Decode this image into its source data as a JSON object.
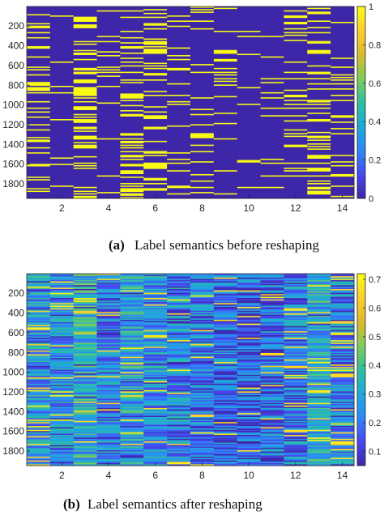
{
  "chart_data": [
    {
      "type": "heatmap",
      "caption_letter": "(a)",
      "caption_text": "Label semantics before reshaping",
      "xlim": [
        0.5,
        14.5
      ],
      "ylim": [
        1,
        1947
      ],
      "x_ticks": [
        2,
        4,
        6,
        8,
        10,
        12,
        14
      ],
      "y_ticks": [
        200,
        400,
        600,
        800,
        1000,
        1200,
        1400,
        1600,
        1800
      ],
      "colorbar": {
        "ticks": [
          0,
          0.2,
          0.4,
          0.6,
          0.8,
          1
        ],
        "range": [
          0,
          1
        ]
      },
      "columns": 14,
      "rows": 1947,
      "colormap": [
        "#3e26a8",
        "#4748f0",
        "#2e87f7",
        "#1fa9db",
        "#2ebf9e",
        "#7fcb5c",
        "#d9ba2f",
        "#fcce2e",
        "#f9fb15"
      ],
      "column_yellow_density": [
        0.3,
        0.08,
        0.38,
        0.1,
        0.34,
        0.22,
        0.17,
        0.12,
        0.1,
        0.06,
        0.08,
        0.16,
        0.32,
        0.12
      ]
    },
    {
      "type": "heatmap",
      "caption_letter": "(b)",
      "caption_text": "Label semantics after reshaping",
      "xlim": [
        0.5,
        14.5
      ],
      "ylim": [
        1,
        1947
      ],
      "x_ticks": [
        2,
        4,
        6,
        8,
        10,
        12,
        14
      ],
      "y_ticks": [
        200,
        400,
        600,
        800,
        1000,
        1200,
        1400,
        1600,
        1800
      ],
      "colorbar": {
        "ticks": [
          0.1,
          0.2,
          0.3,
          0.4,
          0.5,
          0.6,
          0.7
        ],
        "tick_labels": [
          "0.1",
          "0.2",
          "0.3",
          "0.4",
          "0.5",
          "0.6",
          "0.7"
        ],
        "range": [
          0.05,
          0.72
        ]
      },
      "columns": 14,
      "rows": 1947,
      "colormap": [
        "#3e26a8",
        "#4748f0",
        "#2e87f7",
        "#1fa9db",
        "#2ebf9e",
        "#7fcb5c",
        "#d9ba2f",
        "#fcce2e",
        "#f9fb15"
      ],
      "column_mean_level": [
        0.32,
        0.28,
        0.4,
        0.26,
        0.36,
        0.3,
        0.27,
        0.25,
        0.2,
        0.18,
        0.22,
        0.26,
        0.38,
        0.28
      ]
    }
  ]
}
